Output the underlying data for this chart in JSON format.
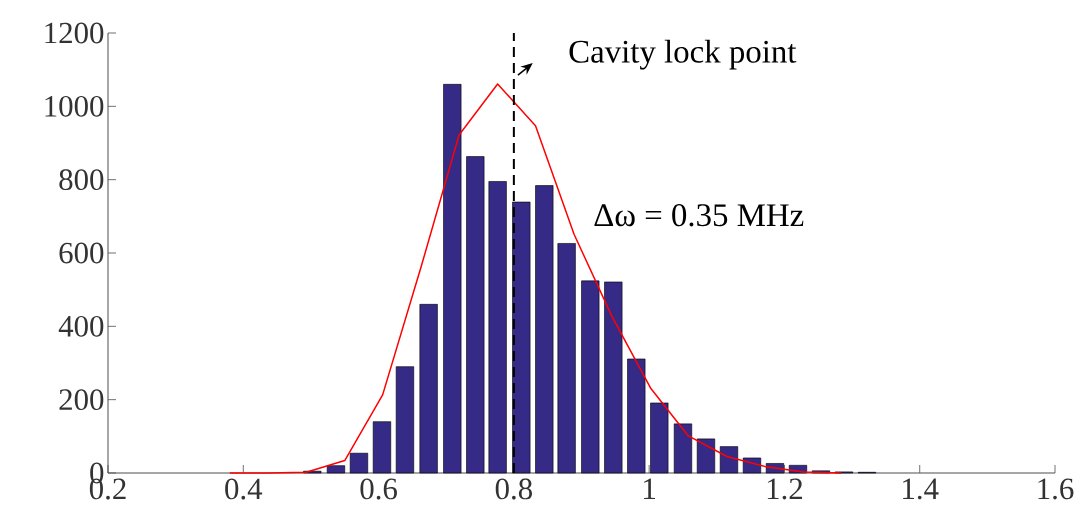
{
  "chart_data": {
    "type": "bar",
    "series": [
      {
        "color": "#352a86",
        "x": [
          0.502,
          0.537,
          0.571,
          0.605,
          0.639,
          0.674,
          0.709,
          0.743,
          0.776,
          0.811,
          0.845,
          0.878,
          0.913,
          0.947,
          0.981,
          1.015,
          1.05,
          1.084,
          1.118,
          1.152,
          1.186,
          1.22,
          1.254,
          1.288,
          1.322
        ],
        "values": [
          5,
          20,
          54,
          140,
          290,
          460,
          1060,
          863,
          795,
          739,
          784,
          626,
          524,
          521,
          311,
          191,
          134,
          93,
          72,
          41,
          26,
          21,
          6,
          3,
          2
        ]
      },
      {
        "type": "line",
        "color": "#ff0000",
        "x": [
          0.38,
          0.437,
          0.493,
          0.55,
          0.606,
          0.663,
          0.719,
          0.776,
          0.832,
          0.889,
          0.945,
          1.002,
          1.058,
          1.115,
          1.171,
          1.228,
          1.284
        ],
        "values": [
          0,
          0,
          2,
          34,
          213,
          563,
          922,
          1061,
          947,
          651,
          427,
          232,
          101,
          45,
          18,
          3,
          0
        ]
      }
    ],
    "ref_lines": [
      {
        "axis": "x",
        "value": 0.8,
        "color": "#000000",
        "line_style": "dashed"
      }
    ],
    "annotations": [
      "Cavity lock point",
      "Δω = 0.35 MHz"
    ],
    "xlim": [
      0.2,
      1.6
    ],
    "ylim": [
      0,
      1200
    ],
    "xticks": [
      0.2,
      0.4,
      0.6,
      0.8,
      1,
      1.2,
      1.4,
      1.6
    ],
    "yticks": [
      0,
      200,
      400,
      600,
      800,
      1000,
      1200
    ]
  }
}
